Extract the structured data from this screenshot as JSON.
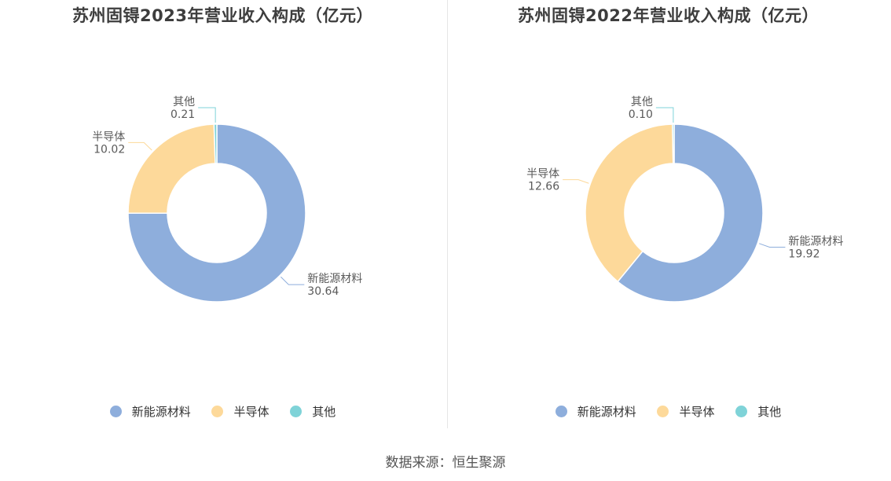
{
  "source": "数据来源：恒生聚源",
  "chart_data": [
    {
      "type": "pie",
      "title": "苏州固锝2023年营业收入构成（亿元）",
      "categories": [
        "新能源材料",
        "半导体",
        "其他"
      ],
      "values": [
        30.64,
        10.02,
        0.21
      ],
      "value_labels": [
        "30.64",
        "10.02",
        "0.21"
      ],
      "colors": [
        "#8eaedc",
        "#fdd99a",
        "#7fd3d8"
      ],
      "legend": "bottom"
    },
    {
      "type": "pie",
      "title": "苏州固锝2022年营业收入构成（亿元）",
      "categories": [
        "新能源材料",
        "半导体",
        "其他"
      ],
      "values": [
        19.92,
        12.66,
        0.1
      ],
      "value_labels": [
        "19.92",
        "12.66",
        "0.10"
      ],
      "colors": [
        "#8eaedc",
        "#fdd99a",
        "#7fd3d8"
      ],
      "legend": "bottom"
    }
  ]
}
